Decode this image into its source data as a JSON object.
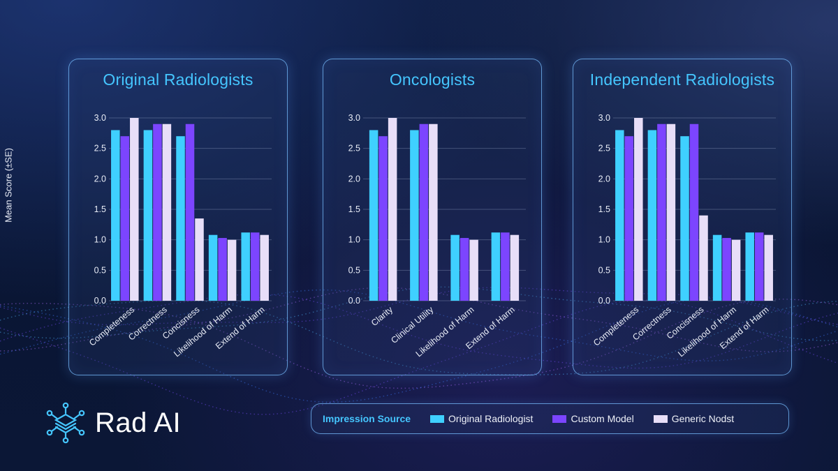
{
  "y_axis_label": "Mean Score (±SE)",
  "logo": {
    "text": "Rad AI",
    "icon": "brain-chip-icon"
  },
  "legend": {
    "title": "Impression Source",
    "items": [
      {
        "label": "Original Radiologist",
        "color": "#3fd0ff"
      },
      {
        "label": "Custom Model",
        "color": "#7c45ff"
      },
      {
        "label": "Generic Nodst",
        "color": "#e8def8"
      }
    ]
  },
  "colors": {
    "accent": "#45c6ff",
    "panel_border": "#78beff"
  },
  "chart_data": [
    {
      "type": "bar",
      "title": "Original Radiologists",
      "ylabel": "Mean Score (±SE)",
      "ylim": [
        0,
        3.0
      ],
      "yticks": [
        "0.0",
        "0.5",
        "1.0",
        "1.5",
        "2.0",
        "2.5",
        "3.0"
      ],
      "categories": [
        "Completeness",
        "Correctness",
        "Concisness",
        "Likelihood of Harm",
        "Extend of Harm"
      ],
      "series": [
        {
          "name": "Original Radiologist",
          "values": [
            2.8,
            2.8,
            2.7,
            1.08,
            1.12
          ]
        },
        {
          "name": "Custom Model",
          "values": [
            2.7,
            2.9,
            2.9,
            1.03,
            1.12
          ]
        },
        {
          "name": "Generic Nodst",
          "values": [
            3.0,
            2.9,
            1.35,
            1.0,
            1.08
          ]
        }
      ]
    },
    {
      "type": "bar",
      "title": "Oncologists",
      "ylabel": "Mean Score (±SE)",
      "ylim": [
        0,
        3.0
      ],
      "yticks": [
        "0.0",
        "0.5",
        "1.0",
        "1.5",
        "2.0",
        "2.5",
        "3.0"
      ],
      "categories": [
        "Clarity",
        "Clinical Utility",
        "Likelihood of Harm",
        "Extend of Harm"
      ],
      "series": [
        {
          "name": "Original Radiologist",
          "values": [
            2.8,
            2.8,
            1.08,
            1.12
          ]
        },
        {
          "name": "Custom Model",
          "values": [
            2.7,
            2.9,
            1.03,
            1.12
          ]
        },
        {
          "name": "Generic Nodst",
          "values": [
            3.0,
            2.9,
            1.0,
            1.08
          ]
        }
      ]
    },
    {
      "type": "bar",
      "title": "Independent Radiologists",
      "ylabel": "Mean Score (±SE)",
      "ylim": [
        0,
        3.0
      ],
      "yticks": [
        "0.0",
        "0.5",
        "1.0",
        "1.5",
        "2.0",
        "2.5",
        "3.0"
      ],
      "categories": [
        "Completeness",
        "Correctness",
        "Concisness",
        "Likelihood of Harm",
        "Extend of Harm"
      ],
      "series": [
        {
          "name": "Original Radiologist",
          "values": [
            2.8,
            2.8,
            2.7,
            1.08,
            1.12
          ]
        },
        {
          "name": "Custom Model",
          "values": [
            2.7,
            2.9,
            2.9,
            1.03,
            1.12
          ]
        },
        {
          "name": "Generic Nodst",
          "values": [
            3.0,
            2.9,
            1.4,
            1.0,
            1.08
          ]
        }
      ]
    }
  ]
}
